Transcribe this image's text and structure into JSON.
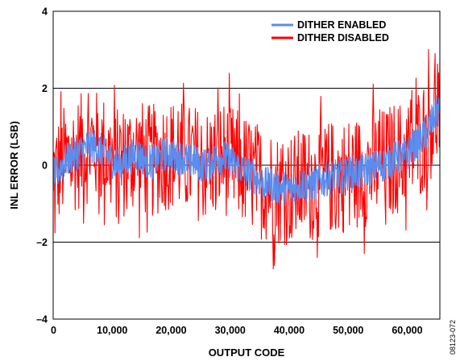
{
  "chart_data": {
    "type": "line",
    "title": "",
    "xlabel": "OUTPUT CODE",
    "ylabel": "INL ERROR (LSB)",
    "xlim": [
      0,
      65535
    ],
    "ylim": [
      -4,
      4
    ],
    "x_ticks": [
      0,
      10000,
      20000,
      30000,
      40000,
      50000,
      60000
    ],
    "x_tick_labels": [
      "0",
      "10,000",
      "20,000",
      "30,000",
      "40,000",
      "50,000",
      "60,000"
    ],
    "y_ticks": [
      -4,
      -2,
      0,
      2,
      4
    ],
    "y_tick_labels": [
      "–4",
      "–2",
      "0",
      "2",
      "4"
    ],
    "grid": "horizontal",
    "legend_position": "top-right",
    "figure_id": "08123-072",
    "series": [
      {
        "name": "DITHER DISABLED",
        "color": "#ff0000",
        "description_points": "noisy INL trace; approximate envelope shown by sampled points",
        "x": [
          0,
          1000,
          2000,
          3000,
          4000,
          5000,
          6000,
          7000,
          8000,
          9000,
          10000,
          11000,
          12000,
          13000,
          14000,
          15000,
          16000,
          17000,
          18000,
          19000,
          20000,
          21000,
          22000,
          23000,
          24000,
          25000,
          26000,
          27000,
          28000,
          29000,
          30000,
          31000,
          32000,
          33000,
          34000,
          35000,
          36000,
          37000,
          38000,
          39000,
          40000,
          41000,
          42000,
          43000,
          44000,
          45000,
          46000,
          47000,
          48000,
          49000,
          50000,
          51000,
          52000,
          53000,
          54000,
          55000,
          56000,
          57000,
          58000,
          59000,
          60000,
          61000,
          62000,
          63000,
          64000,
          65000,
          65535
        ],
        "y": [
          -0.3,
          -0.1,
          0.1,
          0.2,
          0.3,
          0.4,
          0.5,
          0.5,
          0.4,
          0.3,
          0.1,
          0.0,
          0.1,
          0.2,
          0.3,
          0.2,
          0.1,
          0.1,
          0.2,
          0.3,
          0.3,
          0.2,
          0.2,
          0.1,
          0.1,
          0.0,
          0.0,
          0.1,
          0.2,
          0.2,
          0.1,
          0.0,
          -0.1,
          -0.2,
          -0.3,
          -0.4,
          -0.5,
          -0.5,
          -0.6,
          -0.6,
          -0.6,
          -0.6,
          -0.5,
          -0.5,
          -0.5,
          -0.4,
          -0.4,
          -0.3,
          -0.3,
          -0.3,
          -0.2,
          -0.2,
          -0.2,
          -0.1,
          -0.1,
          0.0,
          0.0,
          0.1,
          0.2,
          0.2,
          0.3,
          0.5,
          0.6,
          0.8,
          1.1,
          1.4,
          1.4
        ],
        "noise_amplitude": 1.5
      },
      {
        "name": "DITHER ENABLED",
        "color": "#5b8def",
        "x": [
          0,
          1000,
          2000,
          3000,
          4000,
          5000,
          6000,
          7000,
          8000,
          9000,
          10000,
          11000,
          12000,
          13000,
          14000,
          15000,
          16000,
          17000,
          18000,
          19000,
          20000,
          21000,
          22000,
          23000,
          24000,
          25000,
          26000,
          27000,
          28000,
          29000,
          30000,
          31000,
          32000,
          33000,
          34000,
          35000,
          36000,
          37000,
          38000,
          39000,
          40000,
          41000,
          42000,
          43000,
          44000,
          45000,
          46000,
          47000,
          48000,
          49000,
          50000,
          51000,
          52000,
          53000,
          54000,
          55000,
          56000,
          57000,
          58000,
          59000,
          60000,
          61000,
          62000,
          63000,
          64000,
          65000,
          65535
        ],
        "y": [
          -0.3,
          -0.1,
          0.1,
          0.2,
          0.3,
          0.4,
          0.5,
          0.5,
          0.4,
          0.3,
          0.1,
          0.0,
          0.1,
          0.2,
          0.3,
          0.2,
          0.1,
          0.1,
          0.2,
          0.3,
          0.3,
          0.2,
          0.2,
          0.1,
          0.1,
          0.0,
          0.0,
          0.1,
          0.2,
          0.2,
          0.1,
          0.0,
          -0.1,
          -0.2,
          -0.3,
          -0.4,
          -0.5,
          -0.5,
          -0.6,
          -0.6,
          -0.6,
          -0.6,
          -0.5,
          -0.5,
          -0.5,
          -0.4,
          -0.4,
          -0.3,
          -0.3,
          -0.3,
          -0.2,
          -0.2,
          -0.2,
          -0.1,
          -0.1,
          0.0,
          0.0,
          0.1,
          0.2,
          0.2,
          0.3,
          0.5,
          0.6,
          0.8,
          1.1,
          1.4,
          1.4
        ],
        "noise_amplitude": 0.45
      }
    ]
  }
}
